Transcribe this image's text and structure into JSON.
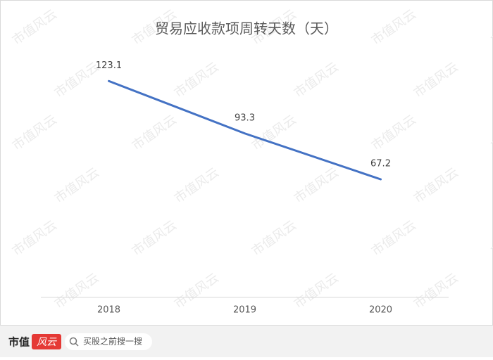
{
  "chart_data": {
    "type": "line",
    "title": "贸易应收款项周转天数（天）",
    "categories": [
      "2018",
      "2019",
      "2020"
    ],
    "values": [
      123.1,
      93.3,
      67.2
    ],
    "color": "#4472c4",
    "ylim": [
      0,
      140
    ],
    "grid": false
  },
  "watermark": "市值风云",
  "footer": {
    "brand": "市值",
    "brand_mark": "风云",
    "search_placeholder": "买股之前搜一搜"
  }
}
